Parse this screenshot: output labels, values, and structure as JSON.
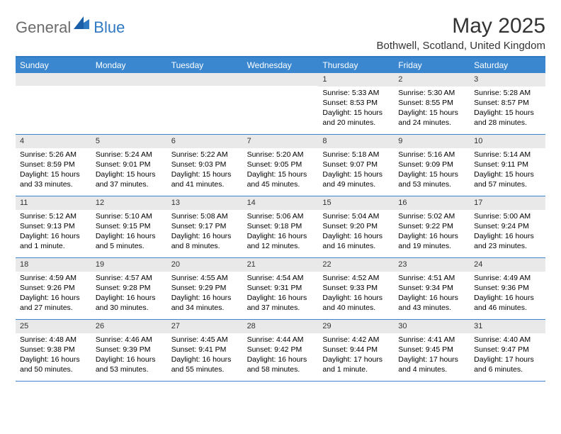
{
  "brand": {
    "text1": "General",
    "text2": "Blue",
    "color_general": "#6b6b6b",
    "color_blue": "#2f78c2"
  },
  "title": "May 2025",
  "location": "Bothwell, Scotland, United Kingdom",
  "colors": {
    "header_bar": "#3a87cf",
    "border": "#2f78c2",
    "daynum_bg": "#e9e9e9",
    "text": "#000000",
    "background": "#ffffff"
  },
  "weekdays": [
    "Sunday",
    "Monday",
    "Tuesday",
    "Wednesday",
    "Thursday",
    "Friday",
    "Saturday"
  ],
  "weeks": [
    [
      null,
      null,
      null,
      null,
      {
        "n": "1",
        "sunrise": "5:33 AM",
        "sunset": "8:53 PM",
        "daylight": "15 hours and 20 minutes."
      },
      {
        "n": "2",
        "sunrise": "5:30 AM",
        "sunset": "8:55 PM",
        "daylight": "15 hours and 24 minutes."
      },
      {
        "n": "3",
        "sunrise": "5:28 AM",
        "sunset": "8:57 PM",
        "daylight": "15 hours and 28 minutes."
      }
    ],
    [
      {
        "n": "4",
        "sunrise": "5:26 AM",
        "sunset": "8:59 PM",
        "daylight": "15 hours and 33 minutes."
      },
      {
        "n": "5",
        "sunrise": "5:24 AM",
        "sunset": "9:01 PM",
        "daylight": "15 hours and 37 minutes."
      },
      {
        "n": "6",
        "sunrise": "5:22 AM",
        "sunset": "9:03 PM",
        "daylight": "15 hours and 41 minutes."
      },
      {
        "n": "7",
        "sunrise": "5:20 AM",
        "sunset": "9:05 PM",
        "daylight": "15 hours and 45 minutes."
      },
      {
        "n": "8",
        "sunrise": "5:18 AM",
        "sunset": "9:07 PM",
        "daylight": "15 hours and 49 minutes."
      },
      {
        "n": "9",
        "sunrise": "5:16 AM",
        "sunset": "9:09 PM",
        "daylight": "15 hours and 53 minutes."
      },
      {
        "n": "10",
        "sunrise": "5:14 AM",
        "sunset": "9:11 PM",
        "daylight": "15 hours and 57 minutes."
      }
    ],
    [
      {
        "n": "11",
        "sunrise": "5:12 AM",
        "sunset": "9:13 PM",
        "daylight": "16 hours and 1 minute."
      },
      {
        "n": "12",
        "sunrise": "5:10 AM",
        "sunset": "9:15 PM",
        "daylight": "16 hours and 5 minutes."
      },
      {
        "n": "13",
        "sunrise": "5:08 AM",
        "sunset": "9:17 PM",
        "daylight": "16 hours and 8 minutes."
      },
      {
        "n": "14",
        "sunrise": "5:06 AM",
        "sunset": "9:18 PM",
        "daylight": "16 hours and 12 minutes."
      },
      {
        "n": "15",
        "sunrise": "5:04 AM",
        "sunset": "9:20 PM",
        "daylight": "16 hours and 16 minutes."
      },
      {
        "n": "16",
        "sunrise": "5:02 AM",
        "sunset": "9:22 PM",
        "daylight": "16 hours and 19 minutes."
      },
      {
        "n": "17",
        "sunrise": "5:00 AM",
        "sunset": "9:24 PM",
        "daylight": "16 hours and 23 minutes."
      }
    ],
    [
      {
        "n": "18",
        "sunrise": "4:59 AM",
        "sunset": "9:26 PM",
        "daylight": "16 hours and 27 minutes."
      },
      {
        "n": "19",
        "sunrise": "4:57 AM",
        "sunset": "9:28 PM",
        "daylight": "16 hours and 30 minutes."
      },
      {
        "n": "20",
        "sunrise": "4:55 AM",
        "sunset": "9:29 PM",
        "daylight": "16 hours and 34 minutes."
      },
      {
        "n": "21",
        "sunrise": "4:54 AM",
        "sunset": "9:31 PM",
        "daylight": "16 hours and 37 minutes."
      },
      {
        "n": "22",
        "sunrise": "4:52 AM",
        "sunset": "9:33 PM",
        "daylight": "16 hours and 40 minutes."
      },
      {
        "n": "23",
        "sunrise": "4:51 AM",
        "sunset": "9:34 PM",
        "daylight": "16 hours and 43 minutes."
      },
      {
        "n": "24",
        "sunrise": "4:49 AM",
        "sunset": "9:36 PM",
        "daylight": "16 hours and 46 minutes."
      }
    ],
    [
      {
        "n": "25",
        "sunrise": "4:48 AM",
        "sunset": "9:38 PM",
        "daylight": "16 hours and 50 minutes."
      },
      {
        "n": "26",
        "sunrise": "4:46 AM",
        "sunset": "9:39 PM",
        "daylight": "16 hours and 53 minutes."
      },
      {
        "n": "27",
        "sunrise": "4:45 AM",
        "sunset": "9:41 PM",
        "daylight": "16 hours and 55 minutes."
      },
      {
        "n": "28",
        "sunrise": "4:44 AM",
        "sunset": "9:42 PM",
        "daylight": "16 hours and 58 minutes."
      },
      {
        "n": "29",
        "sunrise": "4:42 AM",
        "sunset": "9:44 PM",
        "daylight": "17 hours and 1 minute."
      },
      {
        "n": "30",
        "sunrise": "4:41 AM",
        "sunset": "9:45 PM",
        "daylight": "17 hours and 4 minutes."
      },
      {
        "n": "31",
        "sunrise": "4:40 AM",
        "sunset": "9:47 PM",
        "daylight": "17 hours and 6 minutes."
      }
    ]
  ],
  "labels": {
    "sunrise": "Sunrise:",
    "sunset": "Sunset:",
    "daylight": "Daylight:"
  }
}
